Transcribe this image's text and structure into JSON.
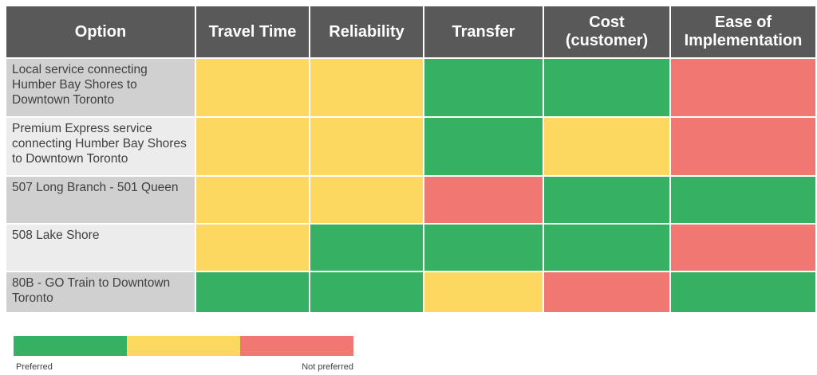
{
  "colors": {
    "preferred": "#36b062",
    "neutral": "#fdd860",
    "not_preferred": "#f07772"
  },
  "chart_data": {
    "type": "table",
    "columns": [
      "Option",
      "Travel Time",
      "Reliability",
      "Transfer",
      "Cost (customer)",
      "Ease of Implementation"
    ],
    "rows": [
      {
        "option": "Local service connecting Humber Bay Shores to Downtown Toronto",
        "ratings": [
          "neutral",
          "neutral",
          "preferred",
          "preferred",
          "not_preferred"
        ]
      },
      {
        "option": "Premium Express service connecting Humber Bay Shores to Downtown Toronto",
        "ratings": [
          "neutral",
          "neutral",
          "preferred",
          "neutral",
          "not_preferred"
        ]
      },
      {
        "option": "507 Long Branch - 501 Queen",
        "ratings": [
          "neutral",
          "neutral",
          "not_preferred",
          "preferred",
          "preferred"
        ]
      },
      {
        "option": "508 Lake Shore",
        "ratings": [
          "neutral",
          "preferred",
          "preferred",
          "preferred",
          "not_preferred"
        ]
      },
      {
        "option": "80B - GO Train to Downtown Toronto",
        "ratings": [
          "preferred",
          "preferred",
          "neutral",
          "not_preferred",
          "preferred"
        ]
      }
    ],
    "legend": {
      "scale": [
        "preferred",
        "neutral",
        "not_preferred"
      ],
      "left_label": "Preferred",
      "right_label": "Not preferred"
    }
  }
}
